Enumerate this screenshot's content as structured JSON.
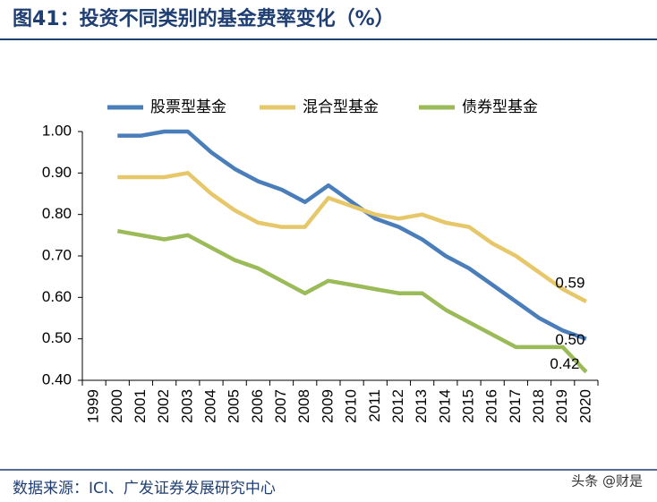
{
  "chart_data": {
    "type": "line",
    "title": "图41：投资不同类别的基金费率变化（%）",
    "source": "数据来源：ICI、广发证券发展研究中心",
    "watermark": "头条 @财是",
    "categories": [
      "1999",
      "2000",
      "2001",
      "2002",
      "2003",
      "2004",
      "2005",
      "2006",
      "2007",
      "2008",
      "2009",
      "2010",
      "2011",
      "2012",
      "2013",
      "2014",
      "2015",
      "2016",
      "2017",
      "2018",
      "2019",
      "2020"
    ],
    "ylim": [
      0.4,
      1.0
    ],
    "yticks": [
      {
        "value": 0.4,
        "label": "0.40"
      },
      {
        "value": 0.5,
        "label": "0.50"
      },
      {
        "value": 0.6,
        "label": "0.60"
      },
      {
        "value": 0.7,
        "label": "0.70"
      },
      {
        "value": 0.8,
        "label": "0.80"
      },
      {
        "value": 0.9,
        "label": "0.90"
      },
      {
        "value": 1.0,
        "label": "1.00"
      }
    ],
    "grid": false,
    "legend": "top",
    "series": [
      {
        "name": "股票型基金",
        "color": "#4a7ebb",
        "values": [
          null,
          0.99,
          0.99,
          1.0,
          1.0,
          0.95,
          0.91,
          0.88,
          0.86,
          0.83,
          0.87,
          0.83,
          0.79,
          0.77,
          0.74,
          0.7,
          0.67,
          0.63,
          0.59,
          0.55,
          0.52,
          0.5
        ],
        "value_labels": [
          null,
          null,
          null,
          null,
          null,
          null,
          null,
          null,
          null,
          null,
          null,
          null,
          null,
          null,
          null,
          null,
          null,
          null,
          null,
          null,
          null,
          "0.50"
        ]
      },
      {
        "name": "混合型基金",
        "color": "#e6c86a",
        "values": [
          null,
          0.89,
          0.89,
          0.89,
          0.9,
          0.85,
          0.81,
          0.78,
          0.77,
          0.77,
          0.84,
          0.82,
          0.8,
          0.79,
          0.8,
          0.78,
          0.77,
          0.73,
          0.7,
          0.66,
          0.62,
          0.59
        ],
        "value_labels": [
          null,
          null,
          null,
          null,
          null,
          null,
          null,
          null,
          null,
          null,
          null,
          null,
          null,
          null,
          null,
          null,
          null,
          null,
          null,
          null,
          null,
          "0.59"
        ]
      },
      {
        "name": "债券型基金",
        "color": "#9bbb59",
        "values": [
          null,
          0.76,
          0.75,
          0.74,
          0.75,
          0.72,
          0.69,
          0.67,
          0.64,
          0.61,
          0.64,
          0.63,
          0.62,
          0.61,
          0.61,
          0.57,
          0.54,
          0.51,
          0.48,
          0.48,
          0.48,
          0.42
        ],
        "value_labels": [
          null,
          null,
          null,
          null,
          null,
          null,
          null,
          null,
          null,
          null,
          null,
          null,
          null,
          null,
          null,
          null,
          null,
          null,
          null,
          null,
          null,
          "0.42"
        ]
      }
    ]
  }
}
